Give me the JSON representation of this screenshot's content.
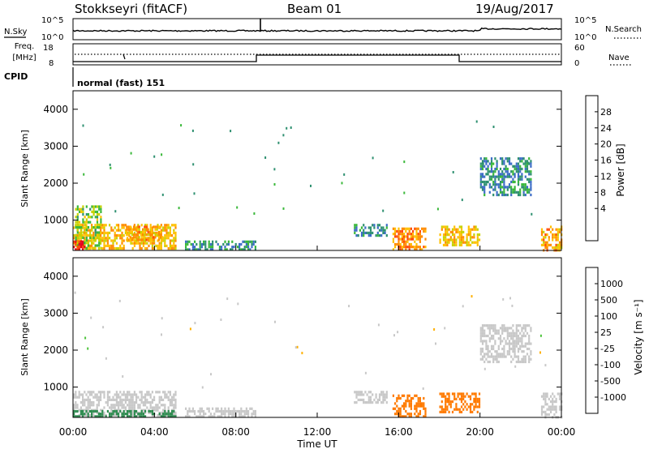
{
  "header": {
    "station": "Stokkseyri (fitACF)",
    "beam": "Beam 01",
    "date": "19/Aug/2017"
  },
  "top_panels": {
    "nsky": {
      "label": "N.Sky",
      "ticks": [
        "10^5",
        "10^0"
      ]
    },
    "nsearch": {
      "label": "N.Search",
      "ticks": [
        "10^5",
        "10^0"
      ]
    },
    "freq": {
      "label_line1": "Freq.",
      "label_line2": "[MHz]",
      "ticks": [
        "18",
        "8"
      ]
    },
    "nave": {
      "label": "Nave",
      "ticks": [
        "60",
        "0"
      ]
    },
    "cpid": {
      "label": "CPID",
      "value": "normal (fast) 151"
    }
  },
  "time_axis": {
    "ticks": [
      "00:00",
      "04:00",
      "08:00",
      "12:00",
      "16:00",
      "20:00",
      "00:00"
    ],
    "label": "Time UT"
  },
  "colorbars": {
    "power": {
      "label": "Power [dB]",
      "ticks": [
        "28",
        "24",
        "20",
        "16",
        "12",
        "8",
        "4"
      ],
      "colors": [
        "#e8001e",
        "#ff4a0a",
        "#ff8c00",
        "#ffc000",
        "#c8d200",
        "#3ab83a",
        "#2e9070",
        "#3c6cc8",
        "#2828e8"
      ]
    },
    "velocity": {
      "label": "Velocity [m s⁻¹]",
      "ticks": [
        "1000",
        "500",
        "100",
        "25",
        "-25",
        "-100",
        "-500",
        "-1000"
      ],
      "colors": [
        "#1a2cc8",
        "#3c64c0",
        "#2e8c50",
        "#4ec43c",
        "#c8c8c8",
        "#ffb000",
        "#ff7a00",
        "#ff4400",
        "#e80000"
      ]
    }
  },
  "chart_data": [
    {
      "type": "heatmap",
      "title": "Power",
      "xlabel": "Time UT",
      "ylabel": "Slant Range [km]",
      "xlim": [
        0,
        24
      ],
      "ylim": [
        180,
        4500
      ],
      "y_ticks": [
        1000,
        2000,
        3000,
        4000
      ],
      "regions": [
        {
          "t0": 0.0,
          "t1": 5.0,
          "r0": 200,
          "r1": 900,
          "level": 18
        },
        {
          "t0": 0.1,
          "t1": 1.4,
          "r0": 220,
          "r1": 1400,
          "level": 12
        },
        {
          "t0": 2.6,
          "t1": 4.4,
          "r0": 450,
          "r1": 850,
          "level": 20
        },
        {
          "t0": 0.0,
          "t1": 0.6,
          "r0": 200,
          "r1": 450,
          "level": 28
        },
        {
          "t0": 5.5,
          "t1": 9.0,
          "r0": 200,
          "r1": 450,
          "level": 6
        },
        {
          "t0": 13.8,
          "t1": 15.4,
          "r0": 550,
          "r1": 900,
          "level": 5
        },
        {
          "t0": 15.7,
          "t1": 17.3,
          "r0": 200,
          "r1": 800,
          "level": 22
        },
        {
          "t0": 18.0,
          "t1": 20.0,
          "r0": 300,
          "r1": 850,
          "level": 18
        },
        {
          "t0": 20.0,
          "t1": 22.5,
          "r0": 1700,
          "r1": 2700,
          "level": 5
        },
        {
          "t0": 23.0,
          "t1": 24.0,
          "r0": 200,
          "r1": 850,
          "level": 20
        }
      ]
    },
    {
      "type": "heatmap",
      "title": "Velocity",
      "xlabel": "Time UT",
      "ylabel": "Slant Range [km]",
      "xlim": [
        0,
        24
      ],
      "ylim": [
        180,
        4500
      ],
      "y_ticks": [
        1000,
        2000,
        3000,
        4000
      ],
      "regions": [
        {
          "t0": 0.0,
          "t1": 5.0,
          "r0": 200,
          "r1": 900,
          "level": 0
        },
        {
          "t0": 0.0,
          "t1": 5.0,
          "r0": 180,
          "r1": 380,
          "level": 150
        },
        {
          "t0": 5.5,
          "t1": 9.0,
          "r0": 200,
          "r1": 450,
          "level": 0
        },
        {
          "t0": 13.8,
          "t1": 15.4,
          "r0": 550,
          "r1": 900,
          "level": 0
        },
        {
          "t0": 15.7,
          "t1": 17.3,
          "r0": 200,
          "r1": 800,
          "level": -200
        },
        {
          "t0": 18.0,
          "t1": 20.0,
          "r0": 300,
          "r1": 850,
          "level": -200
        },
        {
          "t0": 20.0,
          "t1": 22.5,
          "r0": 1700,
          "r1": 2700,
          "level": 0
        },
        {
          "t0": 23.0,
          "t1": 24.0,
          "r0": 200,
          "r1": 850,
          "level": 0
        }
      ]
    }
  ]
}
